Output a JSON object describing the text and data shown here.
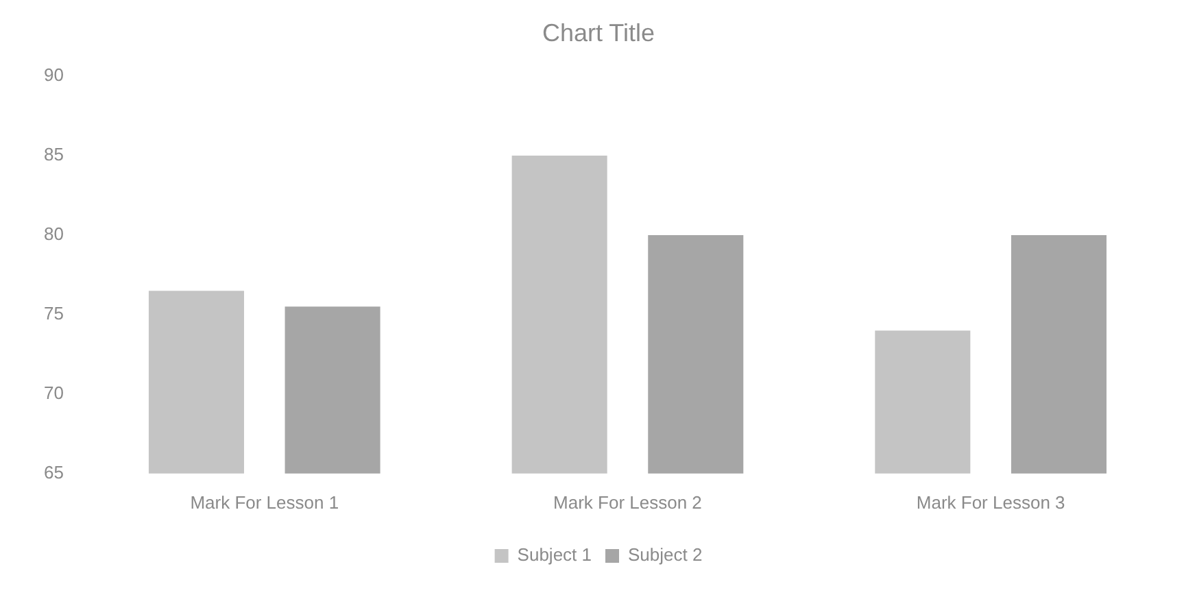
{
  "chart_data": {
    "type": "bar",
    "title": "Chart Title",
    "categories": [
      "Mark For Lesson 1",
      "Mark For Lesson 2",
      "Mark For Lesson 3"
    ],
    "series": [
      {
        "name": "Subject 1",
        "color": "#c4c4c4",
        "values": [
          76.5,
          85,
          74
        ]
      },
      {
        "name": "Subject 2",
        "color": "#a6a6a6",
        "values": [
          75.5,
          80,
          80
        ]
      }
    ],
    "ylim": [
      65,
      90
    ],
    "yticks": [
      65,
      70,
      75,
      80,
      85,
      90
    ],
    "grid": false,
    "legend": "bottom"
  }
}
